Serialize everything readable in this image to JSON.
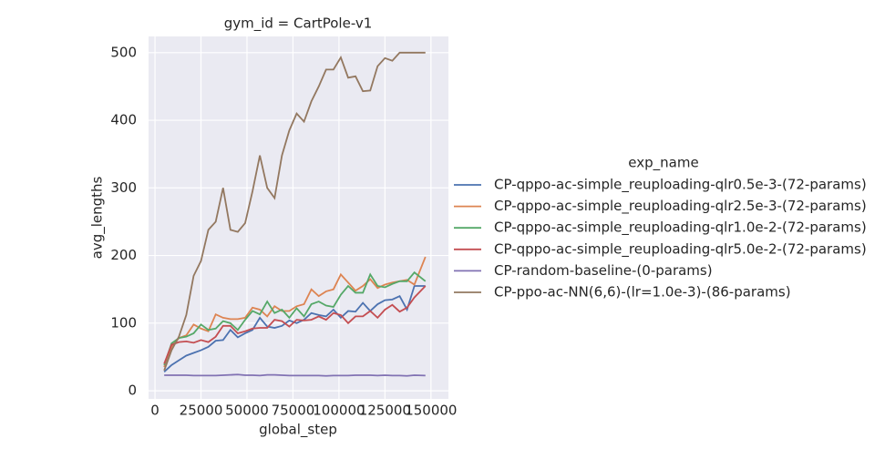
{
  "chart_data": {
    "type": "line",
    "title": "gym_id = CartPole-v1",
    "xlabel": "global_step",
    "ylabel": "avg_lengths",
    "legend_title": "exp_name",
    "legend": "right",
    "grid": true,
    "x": [
      5000,
      9000,
      13000,
      17000,
      21000,
      25000,
      29000,
      33000,
      37000,
      41000,
      45000,
      49000,
      53000,
      57000,
      61000,
      65000,
      69000,
      73000,
      77000,
      81000,
      85000,
      89000,
      93000,
      97000,
      101000,
      105000,
      109000,
      113000,
      117000,
      121000,
      125000,
      129000,
      133000,
      137000,
      141000,
      147000
    ],
    "xlim": [
      -3500,
      159500
    ],
    "xticks": [
      0,
      25000,
      50000,
      75000,
      100000,
      125000,
      150000
    ],
    "ylim": [
      -12,
      524
    ],
    "yticks": [
      0,
      100,
      200,
      300,
      400,
      500
    ],
    "series": [
      {
        "name": "CP-qppo-ac-simple_reuploading-qlr0.5e-3-(72-params)",
        "color": "#4c72b0",
        "values": [
          28,
          38,
          45,
          52,
          56,
          60,
          65,
          74,
          75,
          90,
          79,
          85,
          90,
          108,
          95,
          93,
          96,
          104,
          100,
          105,
          115,
          112,
          110,
          120,
          108,
          118,
          117,
          130,
          118,
          128,
          134,
          135,
          140,
          120,
          155,
          155
        ]
      },
      {
        "name": "CP-qppo-ac-simple_reuploading-qlr2.5e-3-(72-params)",
        "color": "#dd8452",
        "values": [
          35,
          65,
          78,
          82,
          98,
          92,
          88,
          113,
          108,
          106,
          106,
          108,
          123,
          120,
          110,
          125,
          118,
          118,
          125,
          128,
          150,
          140,
          147,
          150,
          172,
          160,
          148,
          155,
          165,
          152,
          157,
          160,
          162,
          164,
          157,
          198
        ]
      },
      {
        "name": "CP-qppo-ac-simple_reuploading-qlr1.0e-2-(72-params)",
        "color": "#55a868",
        "values": [
          38,
          70,
          78,
          80,
          85,
          98,
          90,
          92,
          103,
          100,
          90,
          105,
          118,
          113,
          132,
          115,
          120,
          108,
          122,
          110,
          128,
          132,
          126,
          124,
          142,
          155,
          145,
          145,
          172,
          155,
          153,
          158,
          162,
          162,
          175,
          162
        ]
      },
      {
        "name": "CP-qppo-ac-simple_reuploading-qlr5.0e-2-(72-params)",
        "color": "#c44e52",
        "values": [
          40,
          68,
          72,
          73,
          71,
          75,
          72,
          80,
          96,
          96,
          85,
          88,
          92,
          93,
          93,
          105,
          103,
          95,
          105,
          104,
          105,
          110,
          105,
          115,
          112,
          100,
          110,
          110,
          118,
          108,
          120,
          127,
          117,
          123,
          138,
          155
        ]
      },
      {
        "name": "CP-random-baseline-(0-params)",
        "color": "#8172b3",
        "values": [
          23,
          23,
          23,
          23,
          22.5,
          22.5,
          22.5,
          22.5,
          23,
          23.5,
          24,
          23,
          23,
          22.5,
          23.5,
          23.5,
          23,
          22.5,
          22.5,
          22.5,
          22.5,
          22.5,
          22,
          22.5,
          22.5,
          22.5,
          23,
          23,
          23,
          22.5,
          23,
          22.5,
          22.5,
          22,
          23,
          22.5
        ]
      },
      {
        "name": "CP-ppo-ac-NN(6,6)-(lr=1.0e-3)-(86-params)",
        "color": "#937860",
        "values": [
          30,
          60,
          80,
          112,
          170,
          192,
          238,
          250,
          300,
          238,
          235,
          248,
          295,
          348,
          300,
          285,
          348,
          385,
          410,
          398,
          428,
          450,
          475,
          475,
          493,
          463,
          465,
          443,
          444,
          480,
          492,
          488,
          500,
          500,
          500,
          500
        ]
      }
    ]
  }
}
